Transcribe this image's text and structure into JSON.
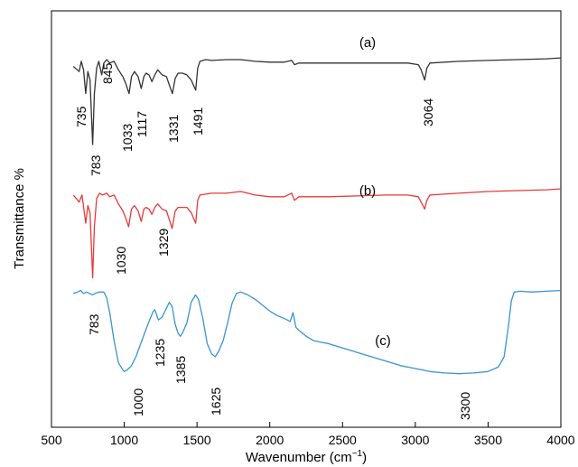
{
  "chart_data": {
    "type": "line",
    "xlabel": "Wavenumber (cm",
    "xlabel_sup": "−1",
    "xlabel_end": ")",
    "ylabel": "Transmittance %",
    "xlim": [
      500,
      4000
    ],
    "x_ticks": [
      "500",
      "1000",
      "1500",
      "2000",
      "2500",
      "3000",
      "3500",
      "4000"
    ],
    "grid": false,
    "series": [
      {
        "name": "(a)",
        "color": "#333333",
        "points": [
          [
            650,
            0.4
          ],
          [
            690,
            0.7
          ],
          [
            705,
            0.1
          ],
          [
            720,
            0.6
          ],
          [
            735,
            2.0
          ],
          [
            750,
            0.7
          ],
          [
            765,
            1.2
          ],
          [
            783,
            5.0
          ],
          [
            795,
            2.0
          ],
          [
            810,
            0.5
          ],
          [
            825,
            0.1
          ],
          [
            845,
            0.9
          ],
          [
            860,
            0.2
          ],
          [
            880,
            0.0
          ],
          [
            900,
            0.2
          ],
          [
            930,
            0.1
          ],
          [
            960,
            0.6
          ],
          [
            990,
            1.0
          ],
          [
            1010,
            1.4
          ],
          [
            1033,
            2.0
          ],
          [
            1050,
            1.0
          ],
          [
            1070,
            0.7
          ],
          [
            1095,
            1.0
          ],
          [
            1117,
            1.7
          ],
          [
            1135,
            1.0
          ],
          [
            1150,
            0.8
          ],
          [
            1170,
            0.9
          ],
          [
            1190,
            1.3
          ],
          [
            1210,
            0.9
          ],
          [
            1230,
            0.6
          ],
          [
            1260,
            0.9
          ],
          [
            1290,
            1.0
          ],
          [
            1310,
            1.5
          ],
          [
            1331,
            2.0
          ],
          [
            1350,
            1.1
          ],
          [
            1370,
            0.8
          ],
          [
            1400,
            0.8
          ],
          [
            1430,
            0.9
          ],
          [
            1460,
            1.2
          ],
          [
            1491,
            1.8
          ],
          [
            1505,
            0.5
          ],
          [
            1520,
            0.1
          ],
          [
            1560,
            0.0
          ],
          [
            1600,
            0.05
          ],
          [
            1700,
            0.0
          ],
          [
            1800,
            0.0
          ],
          [
            1900,
            0.1
          ],
          [
            2000,
            0.15
          ],
          [
            2100,
            0.15
          ],
          [
            2150,
            0.05
          ],
          [
            2170,
            0.3
          ],
          [
            2200,
            0.2
          ],
          [
            2400,
            0.2
          ],
          [
            2600,
            0.2
          ],
          [
            2800,
            0.2
          ],
          [
            2950,
            0.2
          ],
          [
            3020,
            0.3
          ],
          [
            3040,
            0.6
          ],
          [
            3064,
            1.2
          ],
          [
            3080,
            0.5
          ],
          [
            3100,
            0.2
          ],
          [
            3300,
            0.1
          ],
          [
            3500,
            0.05
          ],
          [
            3700,
            0.0
          ],
          [
            3900,
            -0.05
          ],
          [
            4000,
            -0.1
          ]
        ]
      },
      {
        "name": "(b)",
        "color": "#e8393b",
        "points": [
          [
            650,
            0.2
          ],
          [
            690,
            0.6
          ],
          [
            710,
            0.2
          ],
          [
            735,
            1.8
          ],
          [
            750,
            0.8
          ],
          [
            765,
            1.2
          ],
          [
            783,
            4.9
          ],
          [
            795,
            2.0
          ],
          [
            810,
            0.4
          ],
          [
            830,
            0.1
          ],
          [
            850,
            0.2
          ],
          [
            880,
            0.1
          ],
          [
            900,
            0.3
          ],
          [
            930,
            0.2
          ],
          [
            960,
            0.7
          ],
          [
            990,
            1.1
          ],
          [
            1010,
            1.5
          ],
          [
            1030,
            2.0
          ],
          [
            1050,
            1.0
          ],
          [
            1070,
            0.8
          ],
          [
            1095,
            1.1
          ],
          [
            1117,
            1.7
          ],
          [
            1135,
            1.0
          ],
          [
            1150,
            0.9
          ],
          [
            1170,
            1.0
          ],
          [
            1190,
            1.3
          ],
          [
            1210,
            0.9
          ],
          [
            1230,
            0.7
          ],
          [
            1260,
            1.0
          ],
          [
            1290,
            1.1
          ],
          [
            1310,
            1.6
          ],
          [
            1329,
            2.1
          ],
          [
            1350,
            1.1
          ],
          [
            1370,
            0.9
          ],
          [
            1400,
            0.9
          ],
          [
            1430,
            0.9
          ],
          [
            1460,
            1.2
          ],
          [
            1491,
            1.8
          ],
          [
            1505,
            0.5
          ],
          [
            1520,
            0.2
          ],
          [
            1600,
            0.1
          ],
          [
            1700,
            0.1
          ],
          [
            1800,
            0.0
          ],
          [
            1900,
            0.2
          ],
          [
            2000,
            0.3
          ],
          [
            2100,
            0.3
          ],
          [
            2150,
            0.1
          ],
          [
            2170,
            0.5
          ],
          [
            2200,
            0.3
          ],
          [
            2400,
            0.3
          ],
          [
            2600,
            0.25
          ],
          [
            2800,
            0.2
          ],
          [
            2950,
            0.2
          ],
          [
            3020,
            0.3
          ],
          [
            3040,
            0.6
          ],
          [
            3064,
            1.0
          ],
          [
            3080,
            0.5
          ],
          [
            3100,
            0.2
          ],
          [
            3300,
            0.1
          ],
          [
            3500,
            0.0
          ],
          [
            3700,
            -0.05
          ],
          [
            3900,
            -0.1
          ],
          [
            4000,
            -0.15
          ]
        ]
      },
      {
        "name": "(c)",
        "color": "#3a94d4",
        "points": [
          [
            650,
            0.3
          ],
          [
            680,
            0.2
          ],
          [
            700,
            0.1
          ],
          [
            720,
            0.3
          ],
          [
            740,
            0.2
          ],
          [
            783,
            0.4
          ],
          [
            800,
            0.3
          ],
          [
            830,
            0.2
          ],
          [
            860,
            0.2
          ],
          [
            880,
            0.6
          ],
          [
            900,
            1.6
          ],
          [
            930,
            3.5
          ],
          [
            960,
            5.0
          ],
          [
            990,
            5.5
          ],
          [
            1000,
            5.6
          ],
          [
            1020,
            5.5
          ],
          [
            1050,
            5.2
          ],
          [
            1080,
            4.6
          ],
          [
            1110,
            3.8
          ],
          [
            1140,
            3.0
          ],
          [
            1170,
            2.2
          ],
          [
            1200,
            1.5
          ],
          [
            1210,
            1.4
          ],
          [
            1235,
            2.1
          ],
          [
            1260,
            1.9
          ],
          [
            1290,
            1.3
          ],
          [
            1310,
            0.9
          ],
          [
            1330,
            1.2
          ],
          [
            1350,
            2.4
          ],
          [
            1370,
            3.0
          ],
          [
            1385,
            3.2
          ],
          [
            1400,
            3.0
          ],
          [
            1430,
            2.3
          ],
          [
            1460,
            0.9
          ],
          [
            1490,
            0.4
          ],
          [
            1510,
            0.7
          ],
          [
            1540,
            2.0
          ],
          [
            1570,
            3.7
          ],
          [
            1600,
            4.4
          ],
          [
            1625,
            4.6
          ],
          [
            1650,
            4.2
          ],
          [
            1680,
            3.5
          ],
          [
            1710,
            2.3
          ],
          [
            1740,
            1.0
          ],
          [
            1770,
            0.3
          ],
          [
            1800,
            0.2
          ],
          [
            1850,
            0.4
          ],
          [
            1900,
            0.7
          ],
          [
            1950,
            1.1
          ],
          [
            2000,
            1.5
          ],
          [
            2050,
            1.8
          ],
          [
            2100,
            2.0
          ],
          [
            2140,
            2.2
          ],
          [
            2160,
            1.6
          ],
          [
            2180,
            2.6
          ],
          [
            2200,
            2.8
          ],
          [
            2250,
            3.2
          ],
          [
            2300,
            3.5
          ],
          [
            2350,
            3.6
          ],
          [
            2400,
            3.7
          ],
          [
            2500,
            4.0
          ],
          [
            2600,
            4.3
          ],
          [
            2700,
            4.6
          ],
          [
            2800,
            4.9
          ],
          [
            2900,
            5.2
          ],
          [
            3000,
            5.4
          ],
          [
            3100,
            5.6
          ],
          [
            3200,
            5.7
          ],
          [
            3300,
            5.75
          ],
          [
            3400,
            5.7
          ],
          [
            3500,
            5.6
          ],
          [
            3570,
            5.3
          ],
          [
            3610,
            4.6
          ],
          [
            3640,
            2.5
          ],
          [
            3660,
            0.8
          ],
          [
            3680,
            0.2
          ],
          [
            3720,
            0.15
          ],
          [
            3800,
            0.2
          ],
          [
            3900,
            0.15
          ],
          [
            4000,
            0.1
          ]
        ]
      }
    ],
    "annotations": [
      {
        "text": "735"
      },
      {
        "text": "783"
      },
      {
        "text": "845"
      },
      {
        "text": "1033"
      },
      {
        "text": "1117"
      },
      {
        "text": "1331"
      },
      {
        "text": "1491"
      },
      {
        "text": "3064"
      },
      {
        "text": "1030"
      },
      {
        "text": "1329"
      },
      {
        "text": "783"
      },
      {
        "text": "1000"
      },
      {
        "text": "1235"
      },
      {
        "text": "1385"
      },
      {
        "text": "1625"
      },
      {
        "text": "3300"
      }
    ]
  }
}
